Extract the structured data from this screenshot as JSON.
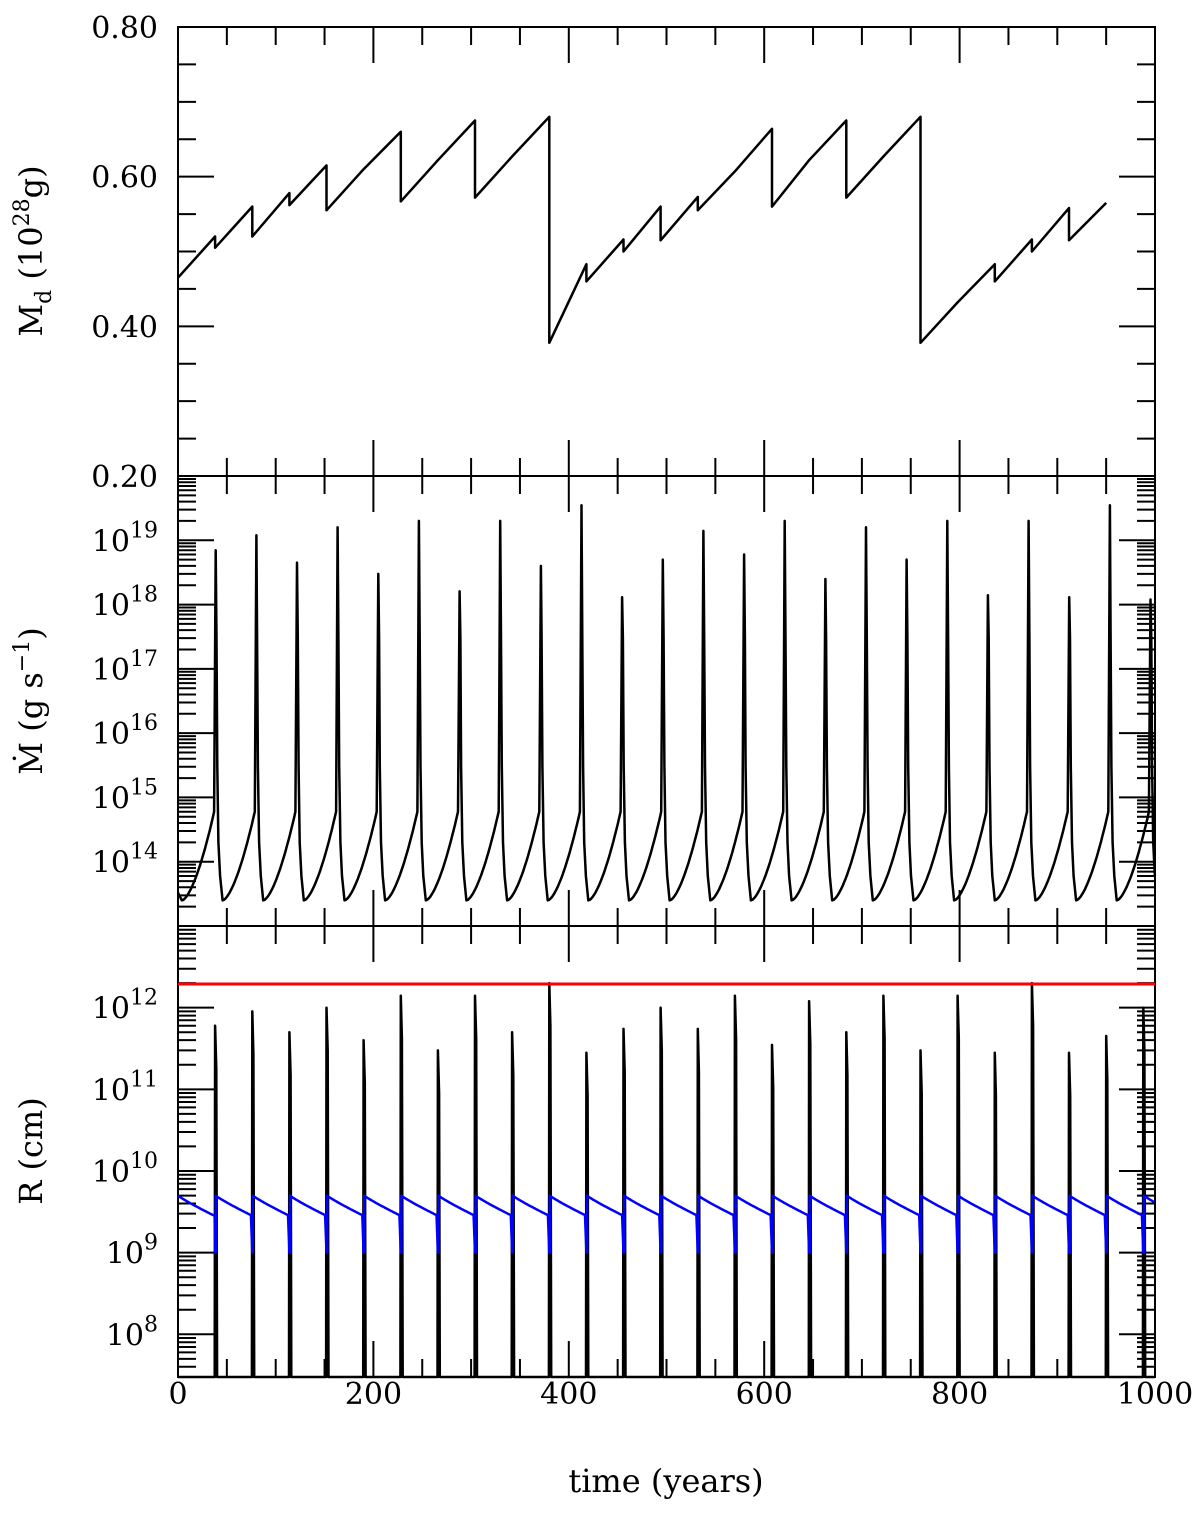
{
  "chart_data": [
    {
      "type": "line",
      "ylabel": {
        "base": "M",
        "sub": "d",
        "unit_open": "(10",
        "unit_exp": "28",
        "unit_close": "g)"
      },
      "ylim": [
        0.2,
        0.8
      ],
      "y_ticks": [
        "0.20",
        "0.40",
        "0.60",
        "0.80"
      ],
      "xlim": [
        0,
        1000
      ],
      "series": [
        {
          "color": "#000000",
          "points": [
            [
              0,
              0.465
            ],
            [
              38,
              0.52
            ],
            [
              38,
              0.505
            ],
            [
              76,
              0.56
            ],
            [
              76,
              0.52
            ],
            [
              114,
              0.578
            ],
            [
              114,
              0.562
            ],
            [
              152,
              0.615
            ],
            [
              152,
              0.555
            ],
            [
              190,
              0.61
            ],
            [
              228,
              0.66
            ],
            [
              228,
              0.567
            ],
            [
              266,
              0.622
            ],
            [
              304,
              0.675
            ],
            [
              304,
              0.572
            ],
            [
              342,
              0.627
            ],
            [
              380,
              0.68
            ],
            [
              380,
              0.378
            ],
            [
              418,
              0.483
            ],
            [
              418,
              0.46
            ],
            [
              456,
              0.516
            ],
            [
              456,
              0.5
            ],
            [
              494,
              0.56
            ],
            [
              494,
              0.515
            ],
            [
              532,
              0.573
            ],
            [
              532,
              0.555
            ],
            [
              570,
              0.607
            ],
            [
              608,
              0.664
            ],
            [
              608,
              0.56
            ],
            [
              646,
              0.622
            ],
            [
              684,
              0.675
            ],
            [
              684,
              0.572
            ],
            [
              722,
              0.627
            ],
            [
              760,
              0.68
            ],
            [
              760,
              0.378
            ],
            [
              798,
              0.432
            ],
            [
              836,
              0.483
            ],
            [
              836,
              0.46
            ],
            [
              874,
              0.516
            ],
            [
              874,
              0.5
            ],
            [
              912,
              0.558
            ],
            [
              912,
              0.515
            ],
            [
              950,
              0.565
            ]
          ]
        }
      ]
    },
    {
      "type": "line",
      "ylabel": {
        "base": "Ṁ",
        "unit": "(g s",
        "unit_exp": "−1",
        "unit_close": ")"
      },
      "yscale": "log",
      "ylim": [
        10000000000000.0,
        1e+20
      ],
      "y_ticks": [
        {
          "base": "10",
          "exp": "14",
          "value": 100000000000000.0
        },
        {
          "base": "10",
          "exp": "15",
          "value": 1000000000000000.0
        },
        {
          "base": "10",
          "exp": "16",
          "value": 1e+16
        },
        {
          "base": "10",
          "exp": "17",
          "value": 1e+17
        },
        {
          "base": "10",
          "exp": "18",
          "value": 1e+18
        },
        {
          "base": "10",
          "exp": "19",
          "value": 1e+19
        }
      ],
      "xlim": [
        0,
        1000
      ],
      "series": [
        {
          "color": "#000000",
          "cycle_period": 38,
          "quiescent_min": 25000000000000.0,
          "pre_outburst_max": 700000000000000.0,
          "outburst_peaks": [
            7e+18,
            1.2e+19,
            4.5e+18,
            1.6e+19,
            3e+18,
            2e+19,
            1.6e+18,
            2e+19,
            4e+18,
            3.5e+19,
            1.3e+18,
            5e+18,
            1.4e+19,
            6e+18,
            2e+19,
            2.5e+18,
            1.6e+19,
            5e+18,
            2e+19,
            1.4e+18,
            2e+19,
            1.3e+18,
            3.5e+19,
            1.2e+18,
            4.5e+18,
            1.4e+19,
            6e+18
          ]
        }
      ]
    },
    {
      "type": "line",
      "xlabel": "time (years)",
      "ylabel": "R (cm)",
      "yscale": "log",
      "ylim": [
        30000000.0,
        10000000000000.0
      ],
      "y_ticks": [
        {
          "base": "10",
          "exp": "8",
          "value": 100000000.0
        },
        {
          "base": "10",
          "exp": "9",
          "value": 1000000000.0
        },
        {
          "base": "10",
          "exp": "10",
          "value": 10000000000.0
        },
        {
          "base": "10",
          "exp": "11",
          "value": 100000000000.0
        },
        {
          "base": "10",
          "exp": "12",
          "value": 1000000000000.0
        }
      ],
      "xlim": [
        0,
        1000
      ],
      "x_ticks": [
        "0",
        "200",
        "400",
        "600",
        "800",
        "1000"
      ],
      "series": [
        {
          "color": "#ff0000",
          "value": 1950000000000.0
        },
        {
          "color": "#0000ff",
          "cycle_period": 38,
          "high": 5000000000.0,
          "low": 2800000000.0,
          "floor": 1000000000.0
        },
        {
          "color": "#000000",
          "cycle_period": 38,
          "floor": 30000000.0,
          "peaks": [
            600000000000.0,
            900000000000.0,
            500000000000.0,
            1000000000000.0,
            400000000000.0,
            1400000000000.0,
            300000000000.0,
            1400000000000.0,
            500000000000.0,
            2000000000000.0,
            280000000000.0,
            550000000000.0,
            1000000000000.0,
            550000000000.0,
            1400000000000.0,
            350000000000.0,
            1200000000000.0,
            500000000000.0,
            1400000000000.0,
            300000000000.0,
            1400000000000.0,
            280000000000.0,
            2000000000000.0,
            280000000000.0,
            450000000000.0,
            1000000000000.0,
            550000000000.0
          ]
        }
      ]
    }
  ]
}
